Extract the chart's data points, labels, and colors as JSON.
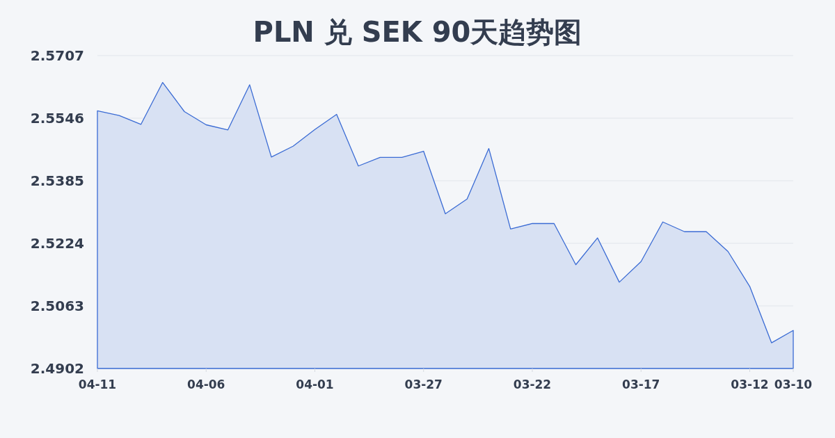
{
  "chart_data": {
    "type": "area",
    "title": "PLN 兑 SEK 90天趋势图",
    "categories": [
      "04-11",
      null,
      null,
      null,
      null,
      "04-06",
      null,
      null,
      null,
      null,
      "04-01",
      null,
      null,
      null,
      null,
      "03-27",
      null,
      null,
      null,
      null,
      "03-22",
      null,
      null,
      null,
      null,
      "03-17",
      null,
      null,
      null,
      null,
      "03-12",
      null,
      "03-10"
    ],
    "series": [
      {
        "color": "#3a6bd4",
        "values": [
          2.5565,
          2.5553,
          2.553,
          2.5638,
          2.5563,
          2.5529,
          2.5516,
          2.5632,
          2.5446,
          2.5474,
          2.5517,
          2.5556,
          2.5423,
          2.5445,
          2.5445,
          2.5461,
          2.53,
          2.5338,
          2.5468,
          2.5261,
          2.5275,
          2.5275,
          2.5169,
          2.5238,
          2.5124,
          2.5177,
          2.5279,
          2.5254,
          2.5254,
          2.5203,
          2.5113,
          2.4968,
          2.5
        ]
      }
    ],
    "ylim": [
      2.4902,
      2.5707
    ],
    "yticks": [
      2.4902,
      2.5063,
      2.5224,
      2.5385,
      2.5546,
      2.5707
    ],
    "grid": "y"
  }
}
